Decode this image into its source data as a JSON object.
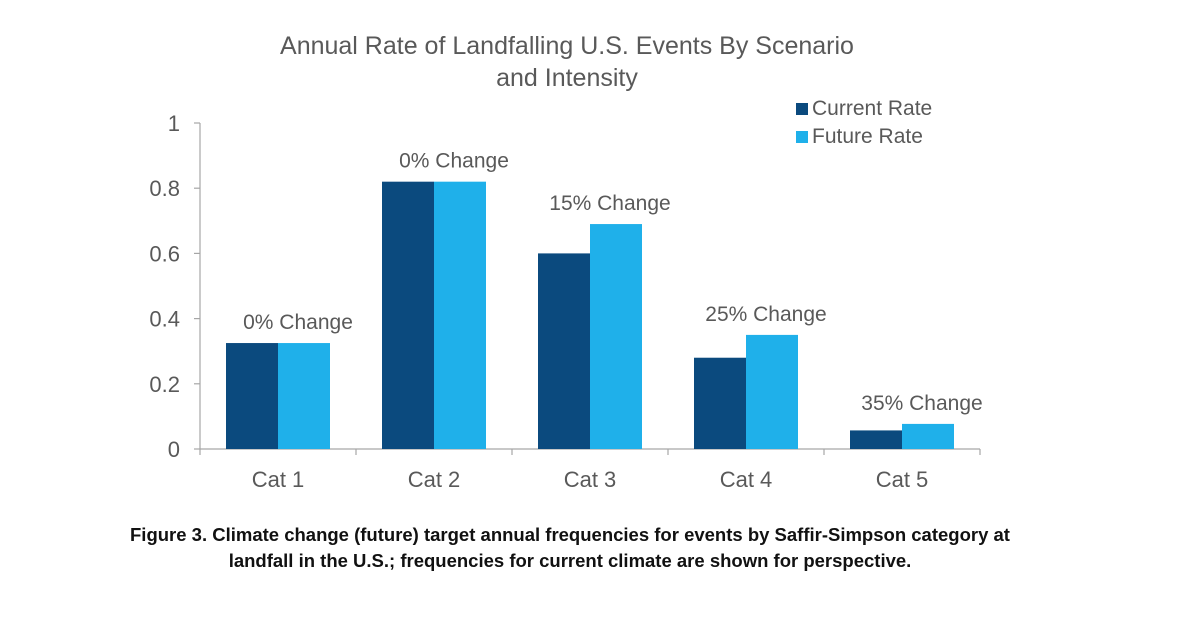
{
  "chart_data": {
    "type": "bar",
    "title_lines": [
      "Annual Rate of Landfalling U.S. Events By Scenario",
      "and Intensity"
    ],
    "xlabel": "",
    "ylabel": "",
    "categories": [
      "Cat 1",
      "Cat 2",
      "Cat 3",
      "Cat 4",
      "Cat 5"
    ],
    "series": [
      {
        "name": "Current Rate",
        "color": "#0b4a7e",
        "values": [
          0.325,
          0.82,
          0.6,
          0.28,
          0.057
        ]
      },
      {
        "name": "Future Rate",
        "color": "#1fb0ea",
        "values": [
          0.325,
          0.82,
          0.69,
          0.35,
          0.077
        ]
      }
    ],
    "annotations": [
      "0% Change",
      "0% Change",
      "15% Change",
      "25% Change",
      "35% Change"
    ],
    "ylim": [
      0,
      1
    ],
    "yticks": [
      0,
      0.2,
      0.4,
      0.6,
      0.8,
      1
    ],
    "ytick_labels": [
      "0",
      "0.2",
      "0.4",
      "0.6",
      "0.8",
      "1"
    ],
    "grid": false,
    "legend_position": "top-right"
  },
  "caption": {
    "line1": "Figure 3. Climate change (future) target annual frequencies for events by Saffir-Simpson category at",
    "line2": "landfall in the U.S.; frequencies for current climate are shown for perspective."
  }
}
